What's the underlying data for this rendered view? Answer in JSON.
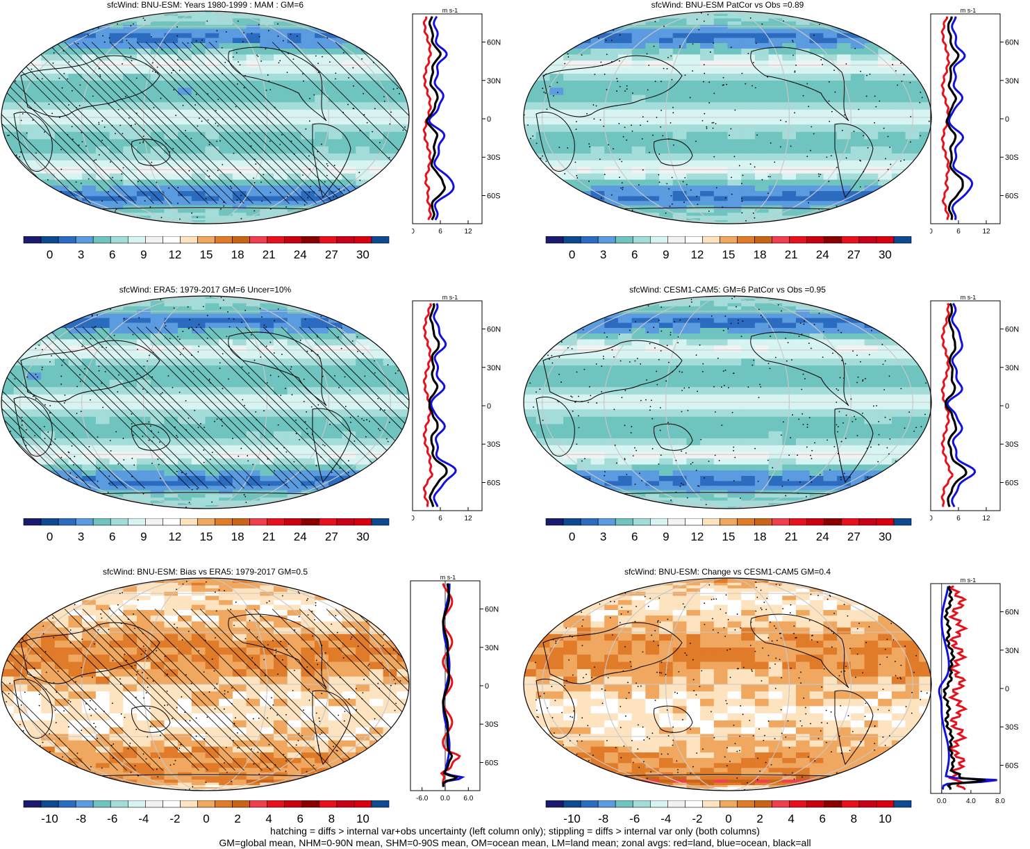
{
  "chart_data": [
    {
      "type": "heatmap",
      "title": "sfcWind: BNU-ESM: Years 1980-1999 : MAM : GM=6",
      "colorbar": {
        "ticks": [
          "0",
          "3",
          "6",
          "9",
          "12",
          "15",
          "18",
          "21",
          "24",
          "27",
          "30"
        ]
      },
      "zonal": {
        "unit": "m s-1",
        "xticks": [
          "0",
          "6",
          "12"
        ],
        "yticks": [
          "60N",
          "30N",
          "0",
          "30S",
          "60S"
        ],
        "xlim": [
          0,
          15
        ]
      },
      "hatching": true,
      "stippling": true
    },
    {
      "type": "heatmap",
      "title": "sfcWind: BNU-ESM PatCor vs Obs =0.89",
      "colorbar": {
        "ticks": [
          "0",
          "3",
          "6",
          "9",
          "12",
          "15",
          "18",
          "21",
          "24",
          "27",
          "30"
        ]
      },
      "zonal": {
        "unit": "m s-1",
        "xticks": [
          "0",
          "6",
          "12"
        ],
        "yticks": [
          "60N",
          "30N",
          "0",
          "30S",
          "60S"
        ],
        "xlim": [
          0,
          15
        ]
      },
      "hatching": false,
      "stippling": true
    },
    {
      "type": "heatmap",
      "title": "sfcWind: ERA5: 1979-2017 GM=6 Uncer=10%",
      "colorbar": {
        "ticks": [
          "0",
          "3",
          "6",
          "9",
          "12",
          "15",
          "18",
          "21",
          "24",
          "27",
          "30"
        ]
      },
      "zonal": {
        "unit": "m s-1",
        "xticks": [
          "0",
          "6",
          "12"
        ],
        "yticks": [
          "60N",
          "30N",
          "0",
          "30S",
          "60S"
        ],
        "xlim": [
          0,
          15
        ]
      },
      "hatching": true,
      "stippling": true
    },
    {
      "type": "heatmap",
      "title": "sfcWind: CESM1-CAM5: GM=6 PatCor vs Obs =0.95",
      "colorbar": {
        "ticks": [
          "0",
          "3",
          "6",
          "9",
          "12",
          "15",
          "18",
          "21",
          "24",
          "27",
          "30"
        ]
      },
      "zonal": {
        "unit": "m s-1",
        "xticks": [
          "0",
          "6",
          "12"
        ],
        "yticks": [
          "60N",
          "30N",
          "0",
          "30S",
          "60S"
        ],
        "xlim": [
          0,
          15
        ]
      },
      "hatching": false,
      "stippling": true
    },
    {
      "type": "heatmap",
      "title": "sfcWind: BNU-ESM: Bias vs ERA5: 1979-2017 GM=0.5",
      "colorbar": {
        "ticks": [
          "-10",
          "-8",
          "-6",
          "-4",
          "-2",
          "0",
          "2",
          "4",
          "6",
          "8",
          "10"
        ]
      },
      "zonal": {
        "unit": "m s-1",
        "xticks": [
          "-6.0",
          "0.0",
          "6.0"
        ],
        "yticks": [
          "60N",
          "30N",
          "0",
          "30S",
          "60S"
        ],
        "xlim": [
          -9,
          9
        ]
      },
      "hatching": true,
      "stippling": true
    },
    {
      "type": "heatmap",
      "title": "sfcWind: BNU-ESM: Change vs CESM1-CAM5 GM=0.4",
      "colorbar": {
        "ticks": [
          "-10",
          "-8",
          "-6",
          "-4",
          "-2",
          "0",
          "2",
          "4",
          "6",
          "8",
          "10"
        ]
      },
      "zonal": {
        "unit": "m s-1",
        "xticks": [
          "0.0",
          "4.0",
          "8.0"
        ],
        "yticks": [
          "60N",
          "30N",
          "0",
          "30S",
          "60S"
        ],
        "xlim": [
          -1.5,
          8
        ]
      },
      "hatching": false,
      "stippling": true
    }
  ],
  "footer": {
    "line1": "hatching = diffs > internal var+obs uncertainty (left column only); stippling = diffs > internal var only (both columns)",
    "line2": "GM=global mean, NHM=0-90N mean, SHM=0-90S mean, OM=ocean mean, LM=land mean; zonal avgs: red=land, blue=ocean, black=all"
  },
  "colors": {
    "seq": [
      "#1a1a6e",
      "#0d4a8f",
      "#2b6cc0",
      "#5b9be0",
      "#6fc4c0",
      "#a3dcd8",
      "#d8f4f2",
      "#f2f2f2",
      "#ffffff",
      "#fde3c0",
      "#f0a860",
      "#e07b2a",
      "#c96418",
      "#f04050",
      "#e8101c",
      "#c80010",
      "#8a0000",
      "#e8101c",
      "#c8001a",
      "#d80010",
      "#0d4a8f"
    ],
    "div": [
      "#1a1a6e",
      "#0d4a8f",
      "#2b6cc0",
      "#5b9be0",
      "#6fc4c0",
      "#a3dcd8",
      "#d8f4f2",
      "#f2f2f2",
      "#ffffff",
      "#fde3c0",
      "#f0a860",
      "#e07b2a",
      "#c96418",
      "#f04050",
      "#e8101c",
      "#c80010",
      "#8a0000",
      "#e8101c",
      "#c8001a",
      "#d80010",
      "#0d4a8f"
    ],
    "land": "#e8101c",
    "ocean": "#1010e0",
    "all": "#000000"
  }
}
